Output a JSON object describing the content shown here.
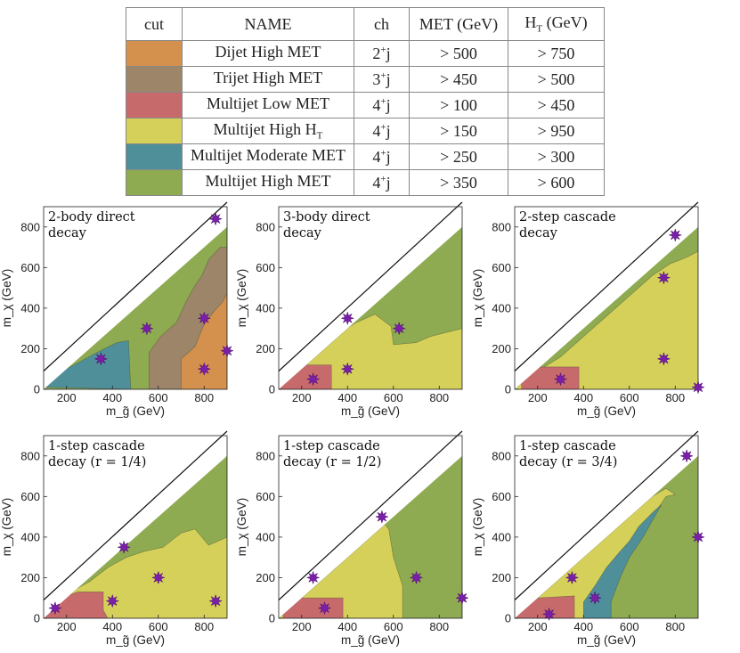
{
  "table": {
    "headers": {
      "cut": "cut",
      "name": "NAME",
      "ch": "ch",
      "met": "MET (GeV)",
      "ht_main": "H",
      "ht_sub": "T",
      "ht_unit": " (GeV)"
    },
    "rows": [
      {
        "color": "#d4914d",
        "name": "Dijet High MET",
        "name_sub": "",
        "ch_num": "2",
        "ch_sup": "+",
        "ch_j": "j",
        "met": "> 500",
        "ht": "> 750"
      },
      {
        "color": "#9c8569",
        "name": "Trijet High MET",
        "name_sub": "",
        "ch_num": "3",
        "ch_sup": "+",
        "ch_j": "j",
        "met": "> 450",
        "ht": "> 500"
      },
      {
        "color": "#c76a6b",
        "name": "Multijet Low MET",
        "name_sub": "",
        "ch_num": "4",
        "ch_sup": "+",
        "ch_j": "j",
        "met": "> 100",
        "ht": "> 450"
      },
      {
        "color": "#d5d05a",
        "name": "Multijet High H",
        "name_sub": "T",
        "ch_num": "4",
        "ch_sup": "+",
        "ch_j": "j",
        "met": "> 150",
        "ht": "> 950"
      },
      {
        "color": "#4f8f99",
        "name": "Multijet Moderate MET",
        "name_sub": "",
        "ch_num": "4",
        "ch_sup": "+",
        "ch_j": "j",
        "met": "> 250",
        "ht": "> 300"
      },
      {
        "color": "#8fab52",
        "name": "Multijet High MET",
        "name_sub": "",
        "ch_num": "4",
        "ch_sup": "+",
        "ch_j": "j",
        "met": "> 350",
        "ht": "> 600"
      }
    ]
  },
  "colors": {
    "dijet": "#d4914d",
    "trijet": "#9c8569",
    "lowmet": "#c76a6b",
    "highht": "#d5d05a",
    "modmet": "#4f8f99",
    "highmet": "#8fab52",
    "star": "#7a1fa8"
  },
  "chart_data": [
    {
      "type": "heatmap",
      "title": "2-body direct",
      "title2": "decay",
      "xlabel": "m_g̃ (GeV)",
      "ylabel": "m_χ (GeV)",
      "xlim": [
        100,
        900
      ],
      "ylim": [
        0,
        900
      ],
      "xticks": [
        "200",
        "400",
        "600",
        "800"
      ],
      "yticks": [
        "0",
        "200",
        "400",
        "600",
        "800"
      ],
      "benchmarks": [
        [
          850,
          840
        ],
        [
          550,
          300
        ],
        [
          800,
          350
        ],
        [
          350,
          150
        ],
        [
          800,
          100
        ],
        [
          900,
          190
        ]
      ]
    },
    {
      "type": "heatmap",
      "title": "3-body direct",
      "title2": "decay",
      "xlabel": "m_g̃ (GeV)",
      "ylabel": "m_χ (GeV)",
      "xlim": [
        100,
        900
      ],
      "ylim": [
        0,
        900
      ],
      "xticks": [
        "200",
        "400",
        "600",
        "800"
      ],
      "yticks": [
        "0",
        "200",
        "400",
        "600",
        "800"
      ],
      "benchmarks": [
        [
          400,
          350
        ],
        [
          625,
          300
        ],
        [
          400,
          100
        ],
        [
          250,
          50
        ]
      ]
    },
    {
      "type": "heatmap",
      "title": "2-step cascade",
      "title2": "decay",
      "xlabel": "m_g̃ (GeV)",
      "ylabel": "m_χ (GeV)",
      "xlim": [
        100,
        900
      ],
      "ylim": [
        0,
        900
      ],
      "xticks": [
        "200",
        "400",
        "600",
        "800"
      ],
      "yticks": [
        "0",
        "200",
        "400",
        "600",
        "800"
      ],
      "benchmarks": [
        [
          800,
          760
        ],
        [
          750,
          550
        ],
        [
          750,
          150
        ],
        [
          300,
          50
        ],
        [
          900,
          10
        ]
      ]
    },
    {
      "type": "heatmap",
      "title": "1-step cascade",
      "title2": "decay (r = 1/4)",
      "xlabel": "m_g̃ (GeV)",
      "ylabel": "m_χ (GeV)",
      "xlim": [
        100,
        900
      ],
      "ylim": [
        0,
        900
      ],
      "xticks": [
        "200",
        "400",
        "600",
        "800"
      ],
      "yticks": [
        "0",
        "200",
        "400",
        "600",
        "800"
      ],
      "benchmarks": [
        [
          450,
          350
        ],
        [
          600,
          200
        ],
        [
          150,
          50
        ],
        [
          400,
          85
        ],
        [
          850,
          85
        ]
      ]
    },
    {
      "type": "heatmap",
      "title": "1-step cascade",
      "title2": "decay (r = 1/2)",
      "xlabel": "m_g̃ (GeV)",
      "ylabel": "m_χ (GeV)",
      "xlim": [
        100,
        900
      ],
      "ylim": [
        0,
        900
      ],
      "xticks": [
        "200",
        "400",
        "600",
        "800"
      ],
      "yticks": [
        "0",
        "200",
        "400",
        "600",
        "800"
      ],
      "benchmarks": [
        [
          550,
          500
        ],
        [
          250,
          200
        ],
        [
          700,
          200
        ],
        [
          300,
          50
        ],
        [
          900,
          100
        ]
      ]
    },
    {
      "type": "heatmap",
      "title": "1-step cascade",
      "title2": "decay (r = 3/4)",
      "xlabel": "m_g̃ (GeV)",
      "ylabel": "m_χ (GeV)",
      "xlim": [
        100,
        900
      ],
      "ylim": [
        0,
        900
      ],
      "xticks": [
        "200",
        "400",
        "600",
        "800"
      ],
      "yticks": [
        "0",
        "200",
        "400",
        "600",
        "800"
      ],
      "benchmarks": [
        [
          850,
          800
        ],
        [
          900,
          400
        ],
        [
          350,
          200
        ],
        [
          450,
          100
        ],
        [
          250,
          20
        ]
      ]
    }
  ]
}
